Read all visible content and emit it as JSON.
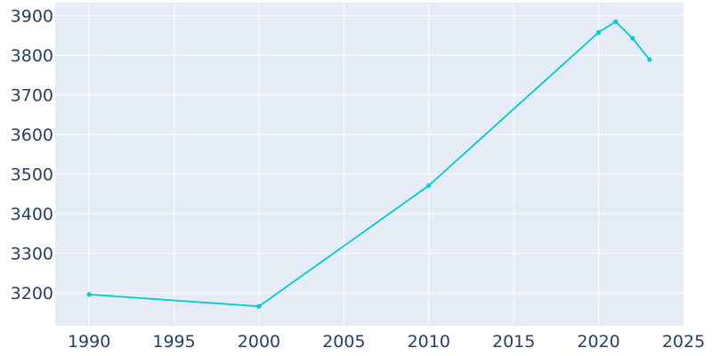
{
  "chart_data": {
    "type": "line",
    "title": "",
    "xlabel": "",
    "ylabel": "",
    "xlim": [
      1988,
      2025
    ],
    "ylim": [
      3117,
      3933
    ],
    "x_ticks": [
      1990,
      1995,
      2000,
      2005,
      2010,
      2015,
      2020,
      2025
    ],
    "y_ticks": [
      3200,
      3300,
      3400,
      3500,
      3600,
      3700,
      3800,
      3900
    ],
    "grid": true,
    "colors": {
      "plot_background": "#e5ecf6",
      "grid": "#ffffff",
      "line": "#00cccc",
      "tick_text": "#2a3f5f"
    },
    "series": [
      {
        "x": [
          1990,
          2000,
          2010,
          2020,
          2021,
          2022,
          2023
        ],
        "y": [
          3196,
          3166,
          3471,
          3858,
          3885,
          3843,
          3789
        ]
      }
    ]
  }
}
